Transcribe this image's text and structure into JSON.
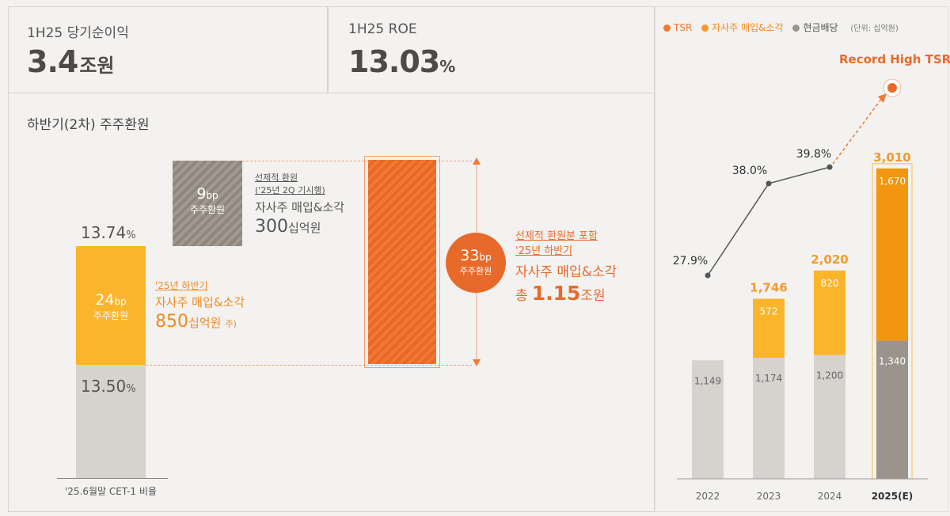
{
  "kpis": [
    {
      "label": "1H25 당기순이익",
      "value": "3.4",
      "unit": "조원"
    },
    {
      "label": "1H25 ROE",
      "value": "13.03",
      "unit": "%"
    }
  ],
  "waterfall": {
    "title": "하반기(2차) 주주환원",
    "base": {
      "pct": "13.50",
      "pct_unit": "%"
    },
    "top_pct": {
      "pct": "13.74",
      "pct_unit": "%"
    },
    "bar24": {
      "bp": "24",
      "bp_unit": "bp",
      "label": "주주환원"
    },
    "bar24_note": {
      "line1": "'25년 하반기",
      "line2": "자사주 매입&소각",
      "amount": "850",
      "amount_unit": "십억원",
      "footnote": "주)"
    },
    "bar9": {
      "bp": "9",
      "bp_unit": "bp",
      "label": "주주환원"
    },
    "bar9_note": {
      "line1": "선제적 환원",
      "line2": "('25년 2Q 기시행)",
      "line3": "자사주 매입&소각",
      "amount": "300",
      "amount_unit": "십억원"
    },
    "bubble33": {
      "bp": "33",
      "bp_unit": "bp",
      "label": "주주환원"
    },
    "bar33_note": {
      "line1": "선제적 환원분 포함",
      "line2": "'25년 하반기",
      "line3": "자사주 매입&소각",
      "prefix": "총",
      "amount": "1.15",
      "amount_unit": "조원"
    },
    "footer": "'25.6월말 CET-1 비율"
  },
  "legend": {
    "items": [
      {
        "label": "TSR",
        "color": "#ee7b30"
      },
      {
        "label": "자사주 매입&소각",
        "color": "#f29a2e"
      },
      {
        "label": "현금배당",
        "color": "#9b948d"
      }
    ],
    "unit": "(단위: 십억원)"
  },
  "record_label": "Record High TSR",
  "chart_data": {
    "type": "bar",
    "categories": [
      "2022",
      "2023",
      "2024",
      "2025(E)"
    ],
    "series": [
      {
        "name": "현금배당",
        "values": [
          1149,
          1174,
          1200,
          1340
        ],
        "color": "#d6d2cd"
      },
      {
        "name": "자사주 매입&소각",
        "values": [
          0,
          572,
          820,
          1670
        ],
        "color": "#fbb52b"
      }
    ],
    "totals": [
      "",
      "1,746",
      "2,020",
      "3,010"
    ],
    "value_labels": {
      "cash": [
        "1,149",
        "1,174",
        "1,200",
        "1,340"
      ],
      "buyback": [
        "",
        "572",
        "820",
        "1,670"
      ]
    },
    "tsr": {
      "name": "TSR",
      "values": [
        27.9,
        38.0,
        39.8
      ],
      "labels": [
        "27.9%",
        "38.0%",
        "39.8%"
      ]
    },
    "ylim": [
      0,
      3300
    ]
  }
}
